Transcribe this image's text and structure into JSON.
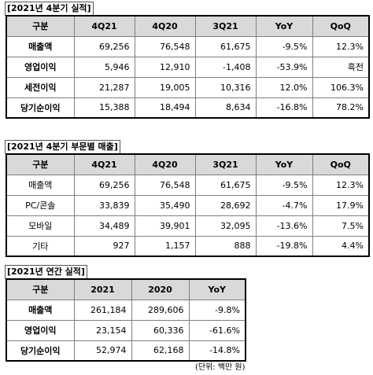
{
  "table1": {
    "caption": "[2021년 4분기 실적]",
    "headers": [
      "구분",
      "4Q21",
      "4Q20",
      "3Q21",
      "YoY",
      "QoQ"
    ],
    "rows": [
      [
        "매출액",
        "69,256",
        "76,548",
        "61,675",
        "-9.5%",
        "12.3%"
      ],
      [
        "영업이익",
        "5,946",
        "12,910",
        "-1,408",
        "-53.9%",
        "흑전"
      ],
      [
        "세전이익",
        "21,287",
        "19,005",
        "10,316",
        "12.0%",
        "106.3%"
      ],
      [
        "당기순이익",
        "15,388",
        "18,494",
        "8,634",
        "-16.8%",
        "78.2%"
      ]
    ]
  },
  "table2": {
    "caption": "[2021년 4분기 부문별 매출]",
    "headers": [
      "구분",
      "4Q21",
      "4Q20",
      "3Q21",
      "YoY",
      "QoQ"
    ],
    "rows": [
      [
        "매출액",
        "69,256",
        "76,548",
        "61,675",
        "-9.5%",
        "12.3%"
      ],
      [
        "PC/콘솔",
        "33,839",
        "35,490",
        "28,692",
        "-4.7%",
        "17.9%"
      ],
      [
        "모바일",
        "34,489",
        "39,901",
        "32,095",
        "-13.6%",
        "7.5%"
      ],
      [
        "기타",
        "927",
        "1,157",
        "888",
        "-19.8%",
        "4.4%"
      ]
    ]
  },
  "table3": {
    "caption": "[2021년 연간 실적]",
    "headers": [
      "구분",
      "2021",
      "2020",
      "YoY"
    ],
    "rows": [
      [
        "매출액",
        "261,184",
        "289,606",
        "-9.8%"
      ],
      [
        "영업이익",
        "23,154",
        "60,336",
        "-61.6%"
      ],
      [
        "당기순이익",
        "52,974",
        "62,168",
        "-14.8%"
      ]
    ]
  },
  "footnote": "(단위: 백만 원)"
}
